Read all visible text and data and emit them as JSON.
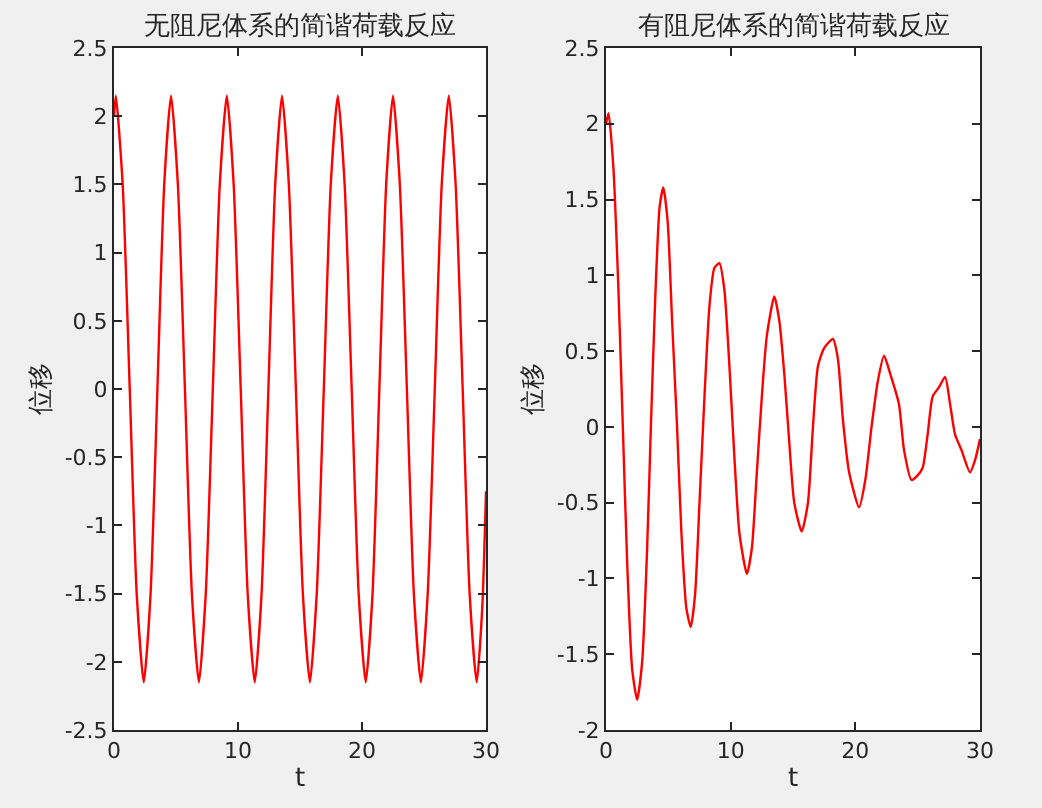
{
  "chart_data": [
    {
      "type": "line",
      "title": "无阻尼体系的简谐荷载反应",
      "xlabel": "t",
      "ylabel": "位移",
      "xlim": [
        0,
        30
      ],
      "xticks": [
        0,
        10,
        20,
        30
      ],
      "ylim": [
        -2.5,
        2.5
      ],
      "yticks": [
        -2.5,
        -2,
        -1.5,
        -1,
        -0.5,
        0,
        0.5,
        1,
        1.5,
        2,
        2.5
      ],
      "series": [
        {
          "color": "#ff0000",
          "x": [
            0,
            0.15,
            0.7,
            1.27,
            1.83,
            2.4,
            2.95,
            3.5,
            4.05,
            4.6,
            5.15,
            5.72,
            6.28,
            6.85,
            7.4,
            7.97,
            8.53,
            9.1,
            9.65,
            10.22,
            10.78,
            11.35,
            11.9,
            12.45,
            13.0,
            13.55,
            14.1,
            14.67,
            15.23,
            15.8,
            16.35,
            16.92,
            17.48,
            18.05,
            18.6,
            19.17,
            19.73,
            20.3,
            20.85,
            21.4,
            21.95,
            22.5,
            23.05,
            23.62,
            24.18,
            24.75,
            25.3,
            25.87,
            26.43,
            27.0,
            27.55,
            28.12,
            28.68,
            29.25,
            29.7,
            30
          ],
          "values": [
            2.0,
            2.15,
            1.5,
            0,
            -1.5,
            -2.15,
            -1.5,
            0,
            1.5,
            2.15,
            1.5,
            0,
            -1.5,
            -2.15,
            -1.5,
            0,
            1.5,
            2.15,
            1.5,
            0,
            -1.5,
            -2.15,
            -1.5,
            0,
            1.5,
            2.15,
            1.5,
            0,
            -1.5,
            -2.15,
            -1.5,
            0,
            1.5,
            2.15,
            1.5,
            0,
            -1.5,
            -2.15,
            -1.5,
            0,
            1.5,
            2.15,
            1.5,
            0,
            -1.5,
            -2.15,
            -1.5,
            0,
            1.5,
            2.15,
            1.5,
            0,
            -1.5,
            -2.15,
            -1.6,
            -0.75
          ]
        }
      ]
    },
    {
      "type": "line",
      "title": "有阻尼体系的简谐荷载反应",
      "xlabel": "t",
      "ylabel": "位移",
      "xlim": [
        0,
        30
      ],
      "xticks": [
        0,
        10,
        20,
        30
      ],
      "ylim": [
        -2,
        2.5
      ],
      "yticks": [
        -2,
        -1.5,
        -1,
        -0.5,
        0,
        0.5,
        1,
        1.5,
        2,
        2.5
      ],
      "series": [
        {
          "color": "#ff0000",
          "x": [
            0,
            0.2,
            0.6,
            1.0,
            1.35,
            1.7,
            2.1,
            2.5,
            2.9,
            3.3,
            3.6,
            3.95,
            4.3,
            4.6,
            4.95,
            5.3,
            5.7,
            6.05,
            6.45,
            6.8,
            7.15,
            7.5,
            7.9,
            8.3,
            8.7,
            9.1,
            9.5,
            9.9,
            10.3,
            10.7,
            11.3,
            11.7,
            12.1,
            12.5,
            12.9,
            13.5,
            13.9,
            14.3,
            14.7,
            15.1,
            15.7,
            16.2,
            16.6,
            17.0,
            17.5,
            18.2,
            18.6,
            19.0,
            19.5,
            20.3,
            20.8,
            21.3,
            21.8,
            22.3,
            22.8,
            23.5,
            23.9,
            24.5,
            25.0,
            25.4,
            25.8,
            26.2,
            26.7,
            27.2,
            27.6,
            28.0,
            28.5,
            29.2,
            29.6,
            30
          ],
          "values": [
            2.0,
            2.07,
            1.7,
            0.9,
            0,
            -0.9,
            -1.6,
            -1.8,
            -1.55,
            -0.8,
            0,
            0.85,
            1.45,
            1.58,
            1.35,
            0.7,
            0,
            -0.7,
            -1.2,
            -1.32,
            -1.1,
            -0.5,
            0.2,
            0.8,
            1.05,
            1.08,
            0.9,
            0.4,
            -0.2,
            -0.7,
            -0.97,
            -0.8,
            -0.3,
            0.2,
            0.6,
            0.86,
            0.7,
            0.35,
            -0.1,
            -0.5,
            -0.69,
            -0.5,
            0,
            0.4,
            0.52,
            0.58,
            0.45,
            0.05,
            -0.3,
            -0.53,
            -0.35,
            0,
            0.3,
            0.47,
            0.35,
            0.15,
            -0.15,
            -0.35,
            -0.32,
            -0.27,
            -0.05,
            0.2,
            0.26,
            0.33,
            0.15,
            -0.05,
            -0.15,
            -0.3,
            -0.22,
            -0.08
          ]
        }
      ]
    }
  ]
}
